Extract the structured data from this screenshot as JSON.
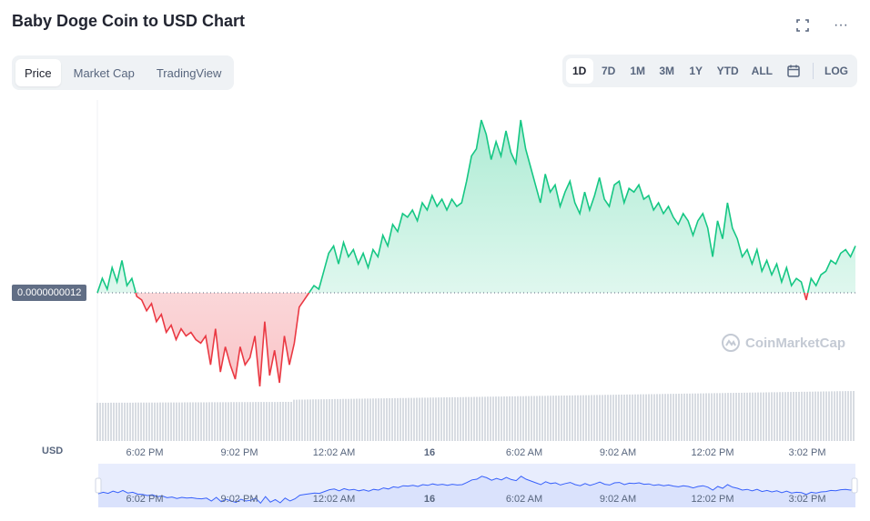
{
  "header": {
    "title": "Baby Doge Coin to USD Chart",
    "fullscreen_icon": "fullscreen-icon",
    "more_icon": "more-icon",
    "more_label": "···"
  },
  "tabs": [
    {
      "label": "Price",
      "active": true
    },
    {
      "label": "Market Cap",
      "active": false
    },
    {
      "label": "TradingView",
      "active": false
    }
  ],
  "ranges": [
    {
      "label": "1D",
      "active": true
    },
    {
      "label": "7D",
      "active": false
    },
    {
      "label": "1M",
      "active": false
    },
    {
      "label": "3M",
      "active": false
    },
    {
      "label": "1Y",
      "active": false
    },
    {
      "label": "YTD",
      "active": false
    },
    {
      "label": "ALL",
      "active": false
    }
  ],
  "calendar_icon": "calendar-icon",
  "log_label": "LOG",
  "currency_label": "USD",
  "current_price_label": "0.0000000012",
  "watermark": "CoinMarketCap",
  "colors": {
    "up": "#16c784",
    "down": "#ea3943",
    "axis_text": "#58667e",
    "volume": "#b0b8c5",
    "navigator_fill": "#e8edfd",
    "navigator_line": "#3861fb"
  },
  "chart_data": {
    "type": "line",
    "baseline": 1.2e-09,
    "x_ticks": [
      "6:02 PM",
      "9:02 PM",
      "12:02 AM",
      "16",
      "6:02 AM",
      "9:02 AM",
      "12:02 PM",
      "3:02 PM"
    ],
    "navigator_ticks": [
      "6:02 PM",
      "9:02 PM",
      "12:02 AM",
      "16",
      "6:02 AM",
      "9:02 AM",
      "12:02 PM",
      "3:02 PM"
    ],
    "series": [
      {
        "relative_values": [
          0.0,
          0.04,
          0.01,
          0.07,
          0.03,
          0.09,
          0.02,
          0.04,
          -0.01,
          -0.02,
          -0.05,
          -0.03,
          -0.08,
          -0.06,
          -0.11,
          -0.09,
          -0.13,
          -0.1,
          -0.12,
          -0.11,
          -0.13,
          -0.14,
          -0.12,
          -0.2,
          -0.1,
          -0.22,
          -0.15,
          -0.2,
          -0.24,
          -0.15,
          -0.2,
          -0.18,
          -0.12,
          -0.26,
          -0.08,
          -0.23,
          -0.16,
          -0.25,
          -0.12,
          -0.2,
          -0.14,
          -0.04,
          -0.02,
          0.0,
          0.02,
          0.01,
          0.06,
          0.11,
          0.13,
          0.08,
          0.14,
          0.1,
          0.12,
          0.08,
          0.11,
          0.07,
          0.12,
          0.1,
          0.16,
          0.13,
          0.19,
          0.17,
          0.22,
          0.21,
          0.23,
          0.2,
          0.25,
          0.23,
          0.27,
          0.24,
          0.26,
          0.23,
          0.26,
          0.24,
          0.25,
          0.31,
          0.38,
          0.4,
          0.48,
          0.44,
          0.37,
          0.42,
          0.38,
          0.45,
          0.39,
          0.36,
          0.48,
          0.4,
          0.35,
          0.3,
          0.25,
          0.33,
          0.28,
          0.3,
          0.24,
          0.28,
          0.31,
          0.25,
          0.22,
          0.28,
          0.23,
          0.27,
          0.32,
          0.26,
          0.24,
          0.3,
          0.31,
          0.25,
          0.29,
          0.28,
          0.3,
          0.26,
          0.27,
          0.23,
          0.25,
          0.22,
          0.24,
          0.21,
          0.19,
          0.22,
          0.2,
          0.16,
          0.2,
          0.22,
          0.18,
          0.1,
          0.2,
          0.15,
          0.25,
          0.18,
          0.15,
          0.1,
          0.12,
          0.08,
          0.12,
          0.06,
          0.09,
          0.05,
          0.08,
          0.03,
          0.07,
          0.02,
          0.04,
          0.03,
          -0.02,
          0.04,
          0.02,
          0.05,
          0.06,
          0.09,
          0.08,
          0.11,
          0.12,
          0.1,
          0.13
        ]
      }
    ]
  }
}
